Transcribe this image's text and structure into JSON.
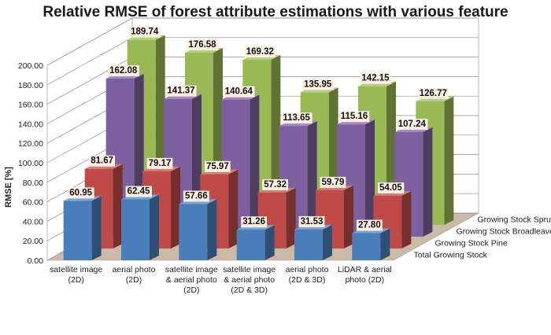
{
  "chart_data": {
    "type": "bar",
    "subtype": "3d-clustered-column",
    "title": "Relative RMSE of forest attribute estimations with various feature combinations",
    "ylabel": "RMSE [%]",
    "xlabel": "",
    "ylim": [
      0,
      200
    ],
    "yticks": [
      "0.00",
      "20.00",
      "40.00",
      "60.00",
      "80.00",
      "100.00",
      "120.00",
      "140.00",
      "160.00",
      "180.00",
      "200.00"
    ],
    "grid": true,
    "categories": [
      [
        "satellite image",
        "(2D)"
      ],
      [
        "aerial photo",
        "(2D)"
      ],
      [
        "satellite image",
        "& aerial photo",
        "(2D)"
      ],
      [
        "satellite image",
        "& aerial photo",
        "(2D & 3D)"
      ],
      [
        "aerial photo",
        "(2D & 3D)"
      ],
      [
        "LiDAR & aerial",
        "photo (2D)"
      ]
    ],
    "series": [
      {
        "name": "Total Growing Stock",
        "color": "#4a7ebb",
        "values": [
          60.95,
          62.45,
          57.66,
          31.26,
          31.53,
          27.8
        ]
      },
      {
        "name": "Growing Stock Pine",
        "color": "#be4b48",
        "values": [
          81.67,
          79.17,
          75.97,
          57.32,
          59.79,
          54.05
        ]
      },
      {
        "name": "Growing Stock Broadleaved",
        "color": "#7d60a0",
        "values": [
          162.08,
          141.37,
          140.64,
          113.65,
          115.16,
          107.24
        ]
      },
      {
        "name": "Growing Stock Spruce",
        "color": "#98b954",
        "values": [
          189.74,
          176.58,
          169.32,
          135.95,
          142.15,
          126.77
        ]
      }
    ]
  }
}
